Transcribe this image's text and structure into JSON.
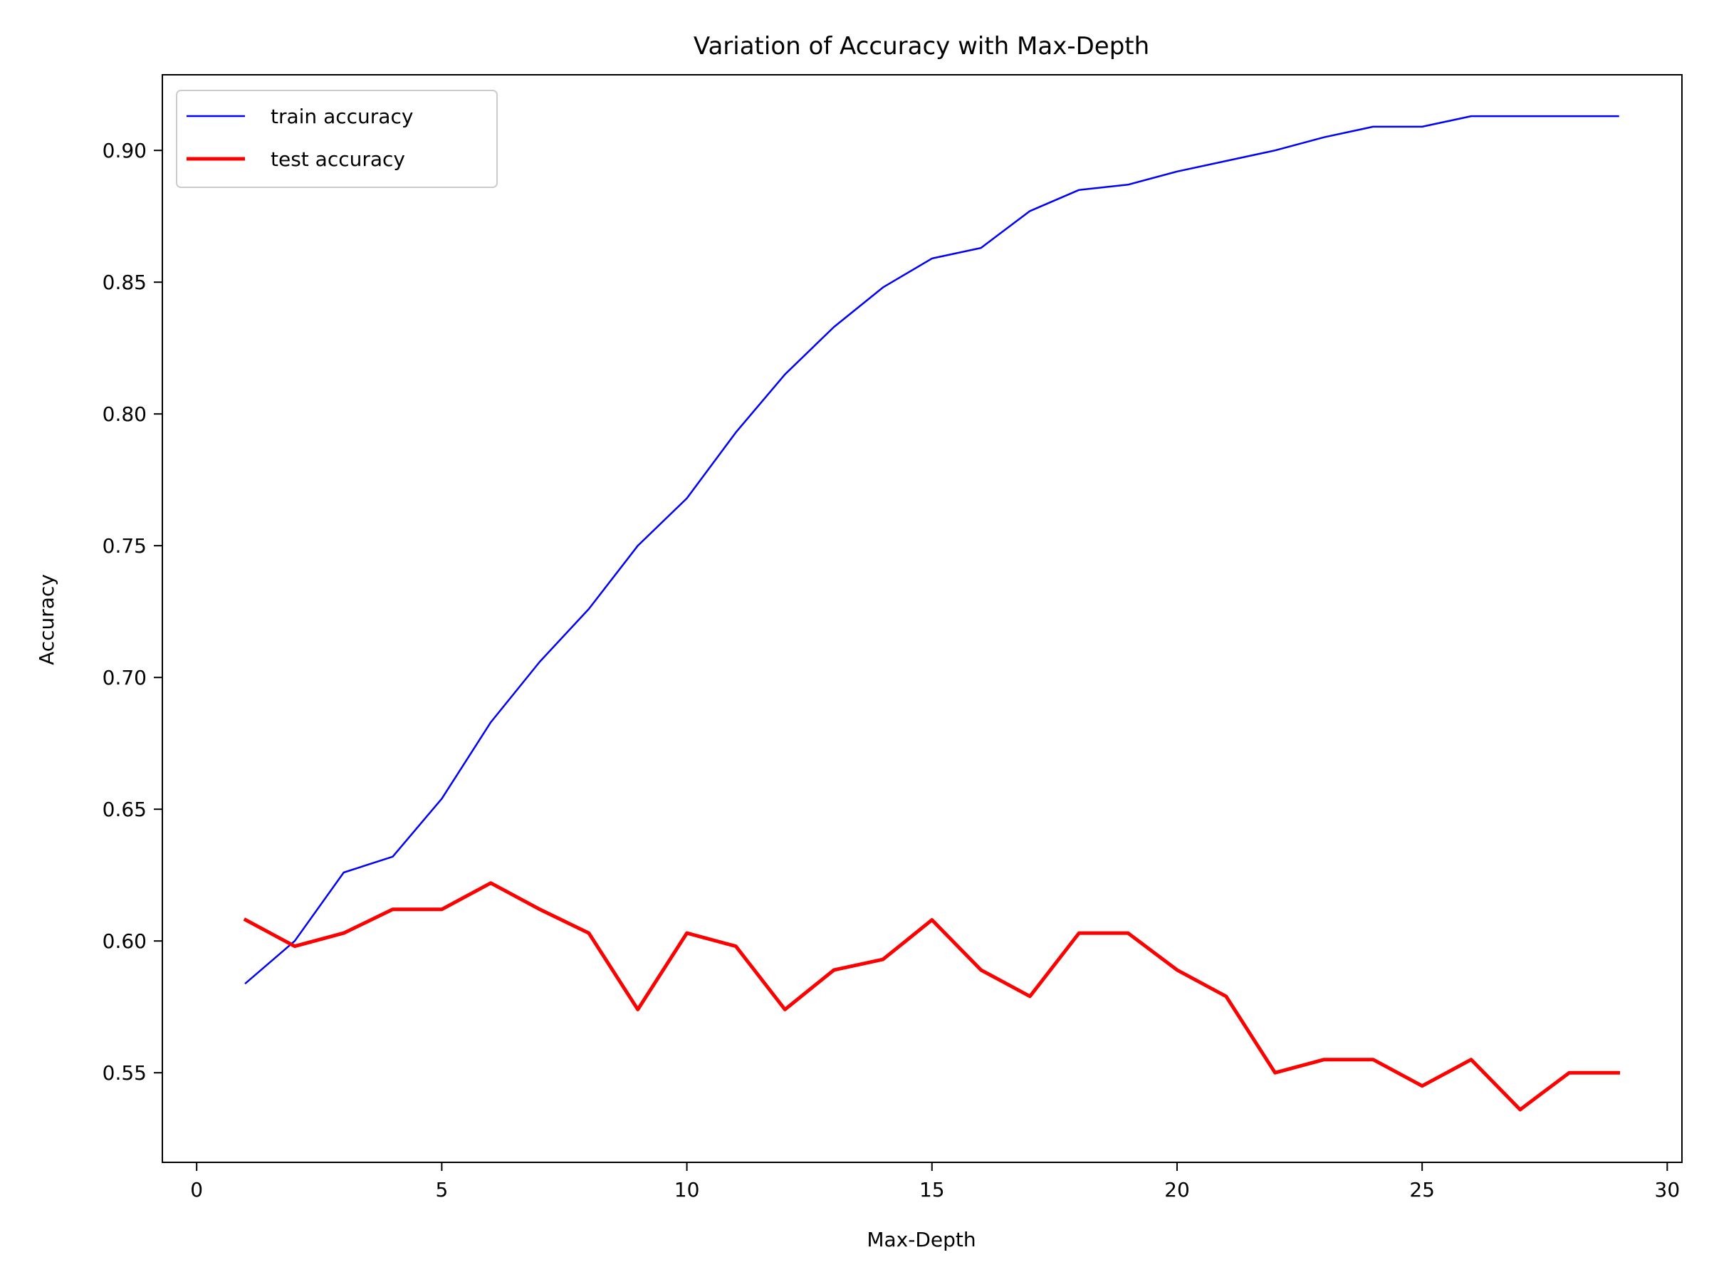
{
  "chart_data": {
    "type": "line",
    "title": "Variation of Accuracy with Max-Depth",
    "xlabel": "Max-Depth",
    "ylabel": "Accuracy",
    "xlim": [
      -0.7,
      30.3
    ],
    "ylim": [
      0.516,
      0.9287
    ],
    "x_ticks": [
      0,
      5,
      10,
      15,
      20,
      25,
      30
    ],
    "y_ticks": [
      0.55,
      0.6,
      0.65,
      0.7,
      0.75,
      0.8,
      0.85,
      0.9
    ],
    "legend_position": "top-left",
    "grid": false,
    "x": [
      1,
      2,
      3,
      4,
      5,
      6,
      7,
      8,
      9,
      10,
      11,
      12,
      13,
      14,
      15,
      16,
      17,
      18,
      19,
      20,
      21,
      22,
      23,
      24,
      25,
      26,
      27,
      28,
      29
    ],
    "series": [
      {
        "name": "train accuracy",
        "color": "#0000ff",
        "values": [
          0.584,
          0.6,
          0.626,
          0.632,
          0.654,
          0.683,
          0.706,
          0.726,
          0.75,
          0.768,
          0.793,
          0.815,
          0.833,
          0.848,
          0.859,
          0.863,
          0.877,
          0.885,
          0.887,
          0.892,
          0.896,
          0.9,
          0.905,
          0.909,
          0.909,
          0.913,
          0.913,
          0.913,
          0.913
        ]
      },
      {
        "name": "test accuracy",
        "color": "#ff0000",
        "values": [
          0.608,
          0.598,
          0.603,
          0.612,
          0.612,
          0.622,
          0.612,
          0.603,
          0.574,
          0.603,
          0.598,
          0.574,
          0.589,
          0.593,
          0.608,
          0.589,
          0.579,
          0.603,
          0.603,
          0.589,
          0.579,
          0.55,
          0.555,
          0.555,
          0.545,
          0.555,
          0.536,
          0.55,
          0.55
        ]
      }
    ]
  }
}
